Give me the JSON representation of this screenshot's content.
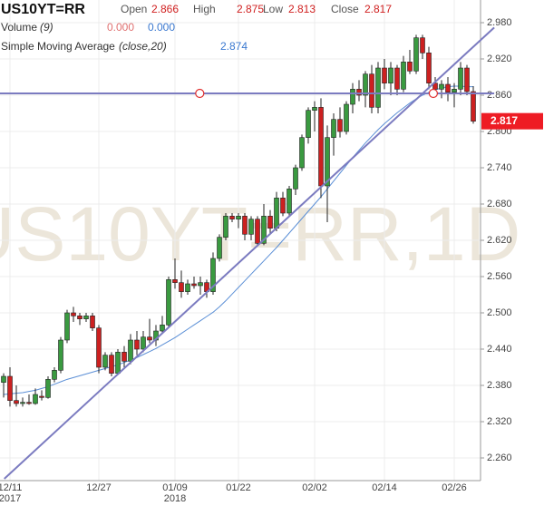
{
  "chart_data": {
    "type": "candlestick",
    "ticker": "US10YT=RR",
    "watermark": "US10YT=RR,1D",
    "header": {
      "open_label": "Open",
      "open": 2.866,
      "high_label": "High",
      "high": 2.875,
      "low_label": "Low",
      "low": 2.813,
      "close_label": "Close",
      "close": 2.817
    },
    "volume": {
      "label": "Volume",
      "period": "(9)",
      "value_a": "0.000",
      "value_b": "0.000"
    },
    "sma": {
      "label": "Simple Moving Average",
      "params": "(close,20)",
      "value": 2.874,
      "color": "#5b8fd6",
      "values": [
        2.365,
        2.366,
        2.367,
        2.368,
        2.37,
        2.372,
        2.375,
        2.378,
        2.382,
        2.386,
        2.39,
        2.393,
        2.396,
        2.399,
        2.402,
        2.405,
        2.408,
        2.411,
        2.414,
        2.418,
        2.422,
        2.426,
        2.431,
        2.436,
        2.441,
        2.447,
        2.453,
        2.459,
        2.466,
        2.473,
        2.48,
        2.487,
        2.494,
        2.501,
        2.51,
        2.52,
        2.531,
        2.542,
        2.553,
        2.564,
        2.575,
        2.586,
        2.597,
        2.608,
        2.62,
        2.632,
        2.644,
        2.656,
        2.668,
        2.68,
        2.692,
        2.705,
        2.718,
        2.731,
        2.744,
        2.757,
        2.769,
        2.781,
        2.792,
        2.803,
        2.813,
        2.822,
        2.831,
        2.839,
        2.847,
        2.854,
        2.86,
        2.865,
        2.869,
        2.872,
        2.874,
        2.875,
        2.875,
        2.874,
        2.874
      ]
    },
    "categories": [
      null,
      "12/11",
      null,
      null,
      null,
      null,
      null,
      null,
      null,
      null,
      null,
      null,
      null,
      null,
      null,
      "12/27",
      null,
      null,
      null,
      null,
      null,
      null,
      null,
      null,
      null,
      null,
      null,
      "01/09",
      null,
      null,
      null,
      null,
      null,
      null,
      null,
      null,
      null,
      "01/22",
      null,
      null,
      null,
      null,
      null,
      null,
      null,
      null,
      null,
      null,
      null,
      "02/02",
      null,
      null,
      null,
      null,
      null,
      null,
      null,
      null,
      null,
      null,
      "02/14",
      null,
      null,
      null,
      null,
      null,
      null,
      null,
      null,
      null,
      null,
      "02/26",
      null,
      null,
      null
    ],
    "year_labels": [
      {
        "at": 1,
        "label": "2017"
      },
      {
        "at": 27,
        "label": "2018"
      }
    ],
    "open": [
      2.385,
      2.395,
      2.355,
      2.35,
      2.352,
      2.35,
      2.362,
      2.36,
      2.39,
      2.405,
      2.455,
      2.5,
      2.495,
      2.49,
      2.495,
      2.475,
      2.41,
      2.43,
      2.4,
      2.435,
      2.42,
      2.455,
      2.44,
      2.46,
      2.455,
      2.47,
      2.48,
      2.555,
      2.55,
      2.535,
      2.548,
      2.545,
      2.55,
      2.535,
      2.59,
      2.625,
      2.66,
      2.655,
      2.66,
      2.63,
      2.655,
      2.615,
      2.66,
      2.64,
      2.69,
      2.665,
      2.705,
      2.74,
      2.79,
      2.835,
      2.84,
      2.71,
      2.79,
      2.82,
      2.8,
      2.845,
      2.87,
      2.86,
      2.895,
      2.84,
      2.905,
      2.88,
      2.905,
      2.87,
      2.915,
      2.9,
      2.955,
      2.93,
      2.88,
      2.87,
      2.878,
      2.865,
      2.87,
      2.905,
      2.866
    ],
    "high": [
      2.4,
      2.41,
      2.38,
      2.36,
      2.365,
      2.375,
      2.372,
      2.395,
      2.41,
      2.46,
      2.505,
      2.51,
      2.5,
      2.5,
      2.5,
      2.48,
      2.435,
      2.435,
      2.44,
      2.445,
      2.465,
      2.47,
      2.47,
      2.49,
      2.48,
      2.495,
      2.56,
      2.59,
      2.57,
      2.555,
      2.56,
      2.56,
      2.555,
      2.6,
      2.63,
      2.665,
      2.665,
      2.665,
      2.665,
      2.66,
      2.66,
      2.68,
      2.67,
      2.7,
      2.7,
      2.71,
      2.745,
      2.795,
      2.84,
      2.85,
      2.855,
      2.81,
      2.83,
      2.84,
      2.85,
      2.88,
      2.885,
      2.9,
      2.91,
      2.915,
      2.92,
      2.915,
      2.91,
      2.925,
      2.935,
      2.96,
      2.96,
      2.94,
      2.89,
      2.885,
      2.89,
      2.88,
      2.915,
      2.91,
      2.875
    ],
    "low": [
      2.36,
      2.345,
      2.345,
      2.345,
      2.348,
      2.348,
      2.355,
      2.358,
      2.385,
      2.4,
      2.45,
      2.485,
      2.48,
      2.485,
      2.47,
      2.4,
      2.405,
      2.395,
      2.398,
      2.41,
      2.415,
      2.43,
      2.435,
      2.45,
      2.445,
      2.465,
      2.475,
      2.54,
      2.525,
      2.53,
      2.54,
      2.53,
      2.525,
      2.53,
      2.585,
      2.62,
      2.65,
      2.64,
      2.62,
      2.62,
      2.61,
      2.612,
      2.63,
      2.635,
      2.66,
      2.66,
      2.695,
      2.735,
      2.78,
      2.8,
      2.69,
      2.65,
      2.76,
      2.79,
      2.795,
      2.83,
      2.85,
      2.84,
      2.83,
      2.83,
      2.87,
      2.86,
      2.86,
      2.865,
      2.895,
      2.895,
      2.92,
      2.87,
      2.86,
      2.855,
      2.85,
      2.84,
      2.86,
      2.86,
      2.813
    ],
    "close": [
      2.395,
      2.355,
      2.35,
      2.352,
      2.35,
      2.365,
      2.36,
      2.39,
      2.405,
      2.455,
      2.5,
      2.495,
      2.49,
      2.495,
      2.475,
      2.41,
      2.43,
      2.4,
      2.435,
      2.42,
      2.455,
      2.44,
      2.46,
      2.455,
      2.47,
      2.48,
      2.555,
      2.55,
      2.535,
      2.548,
      2.545,
      2.55,
      2.535,
      2.59,
      2.625,
      2.66,
      2.655,
      2.66,
      2.63,
      2.655,
      2.615,
      2.66,
      2.64,
      2.69,
      2.665,
      2.705,
      2.74,
      2.79,
      2.835,
      2.84,
      2.71,
      2.79,
      2.82,
      2.8,
      2.845,
      2.87,
      2.86,
      2.895,
      2.84,
      2.905,
      2.88,
      2.905,
      2.87,
      2.915,
      2.9,
      2.955,
      2.93,
      2.88,
      2.87,
      2.878,
      2.865,
      2.87,
      2.905,
      2.866,
      2.817
    ],
    "up_color": "#3a9a40",
    "down_color": "#cc2020",
    "price_label_color": "#ee1c24",
    "trend_lines": [
      {
        "color": "#7b7bc0",
        "x": [
          -0.6,
          77.3
        ],
        "y": [
          2.863,
          2.863
        ],
        "markers": [
          30.9,
          67.7
        ]
      },
      {
        "color": "#7b7bc0",
        "x": [
          0.1,
          77.3
        ],
        "y": [
          2.2255,
          2.972
        ],
        "markers": []
      }
    ],
    "ylim": [
      2.2225,
      3.0175
    ],
    "yticks": [
      {
        "value": 2.98,
        "label": "2.980"
      },
      {
        "value": 2.92,
        "label": "2.920"
      },
      {
        "value": 2.86,
        "label": "2.860"
      },
      {
        "value": 2.8,
        "label": "2.800"
      },
      {
        "value": 2.74,
        "label": "2.740"
      },
      {
        "value": 2.68,
        "label": "2.680"
      },
      {
        "value": 2.62,
        "label": "2.620"
      },
      {
        "value": 2.56,
        "label": "2.560"
      },
      {
        "value": 2.5,
        "label": "2.500"
      },
      {
        "value": 2.44,
        "label": "2.440"
      },
      {
        "value": 2.38,
        "label": "2.380"
      },
      {
        "value": 2.32,
        "label": "2.320"
      },
      {
        "value": 2.26,
        "label": "2.260"
      }
    ],
    "grid": true
  }
}
